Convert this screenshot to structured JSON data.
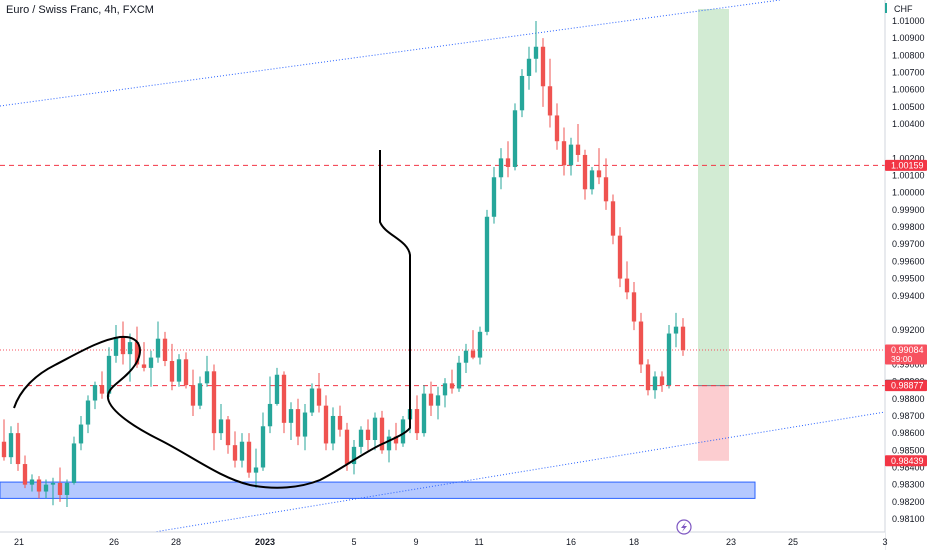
{
  "chart_data": {
    "type": "candlestick",
    "title": "Euro / Swiss Franc, 4h, FXCM",
    "currency": "CHF",
    "y_ticks": [
      "1.01000",
      "1.00900",
      "1.00800",
      "1.00700",
      "1.00600",
      "1.00500",
      "1.00400",
      "1.00200",
      "1.00100",
      "1.00000",
      "0.99900",
      "0.99800",
      "0.99700",
      "0.99600",
      "0.99500",
      "0.99400",
      "0.99200",
      "0.99000",
      "0.98900",
      "0.98800",
      "0.98700",
      "0.98600",
      "0.98500",
      "0.98400",
      "0.98300",
      "0.98200",
      "0.98100"
    ],
    "x_ticks": [
      "21",
      "26",
      "28",
      "2023",
      "5",
      "9",
      "11",
      "16",
      "18",
      "23",
      "25",
      "3"
    ],
    "x_tick_dates": [
      "2022-12-21",
      "2022-12-26",
      "2022-12-28",
      "2023-01-01",
      "2023-01-05",
      "2023-01-09",
      "2023-01-11",
      "2023-01-16",
      "2023-01-18",
      "2023-01-23",
      "2023-01-25",
      "2023-02-03"
    ],
    "ylim": [
      0.9805,
      1.0123
    ],
    "colors": {
      "up": "#26a69a",
      "down": "#ef5350",
      "channel": "#2962ff",
      "level": "#f23645"
    },
    "price_labels": [
      {
        "text": "1.00159",
        "value": 1.00159,
        "bg": "#f23645",
        "color": "#ffffff"
      },
      {
        "text": "0.99084",
        "sub": "39:00",
        "value": 0.99084,
        "bg": "#f7525f",
        "color": "#ffffff"
      },
      {
        "text": "0.98879",
        "value": 0.98879,
        "bg": "#363a45",
        "color": "#ffffff"
      },
      {
        "text": "0.98877",
        "value": 0.98877,
        "bg": "#f23645",
        "color": "#ffffff"
      },
      {
        "text": "0.98439",
        "value": 0.98439,
        "bg": "#f23645",
        "color": "#ffffff"
      }
    ],
    "levels": [
      {
        "value": 1.00159,
        "style": "dashed",
        "color": "#f23645"
      },
      {
        "value": 0.99084,
        "style": "dotted",
        "color": "#f7525f"
      },
      {
        "value": 0.98877,
        "style": "dashed",
        "color": "#f23645"
      }
    ],
    "support_zone": {
      "from": 0.9822,
      "to": 0.98315,
      "color": "#2962ff"
    },
    "position": {
      "entry": 0.98877,
      "target": 1.0107,
      "stop": 0.98439
    },
    "candles": [
      [
        0.9855,
        0.9868,
        0.9844,
        0.9846
      ],
      [
        0.9846,
        0.9864,
        0.9842,
        0.986
      ],
      [
        0.986,
        0.9866,
        0.9838,
        0.9842
      ],
      [
        0.9842,
        0.9847,
        0.9828,
        0.983
      ],
      [
        0.983,
        0.9836,
        0.9826,
        0.9833
      ],
      [
        0.9833,
        0.9835,
        0.9822,
        0.9826
      ],
      [
        0.9826,
        0.9833,
        0.9822,
        0.983
      ],
      [
        0.983,
        0.9834,
        0.9818,
        0.9831
      ],
      [
        0.9831,
        0.984,
        0.982,
        0.9824
      ],
      [
        0.9824,
        0.9833,
        0.9817,
        0.9831
      ],
      [
        0.9831,
        0.9858,
        0.983,
        0.9854
      ],
      [
        0.9854,
        0.987,
        0.985,
        0.9865
      ],
      [
        0.9865,
        0.9882,
        0.986,
        0.9879
      ],
      [
        0.9879,
        0.989,
        0.9874,
        0.9888
      ],
      [
        0.9888,
        0.9896,
        0.988,
        0.9883
      ],
      [
        0.9883,
        0.991,
        0.9881,
        0.9905
      ],
      [
        0.9905,
        0.9923,
        0.9901,
        0.9916
      ],
      [
        0.9916,
        0.9925,
        0.99,
        0.9906
      ],
      [
        0.9906,
        0.9918,
        0.989,
        0.9913
      ],
      [
        0.9913,
        0.9922,
        0.9898,
        0.99
      ],
      [
        0.99,
        0.9913,
        0.9896,
        0.9898
      ],
      [
        0.9898,
        0.9908,
        0.9887,
        0.9904
      ],
      [
        0.9904,
        0.9925,
        0.9901,
        0.9915
      ],
      [
        0.9915,
        0.9919,
        0.9899,
        0.9902
      ],
      [
        0.9902,
        0.9912,
        0.9885,
        0.989
      ],
      [
        0.989,
        0.9906,
        0.9887,
        0.9903
      ],
      [
        0.9903,
        0.9907,
        0.9886,
        0.9888
      ],
      [
        0.9888,
        0.9897,
        0.987,
        0.9876
      ],
      [
        0.9876,
        0.9893,
        0.9874,
        0.9889
      ],
      [
        0.9889,
        0.9905,
        0.9887,
        0.9896
      ],
      [
        0.9896,
        0.99,
        0.985,
        0.986
      ],
      [
        0.986,
        0.9877,
        0.9856,
        0.9868
      ],
      [
        0.9868,
        0.987,
        0.9848,
        0.9853
      ],
      [
        0.9853,
        0.9861,
        0.984,
        0.9844
      ],
      [
        0.9844,
        0.986,
        0.984,
        0.9855
      ],
      [
        0.9855,
        0.986,
        0.9834,
        0.9837
      ],
      [
        0.9837,
        0.9851,
        0.9828,
        0.984
      ],
      [
        0.984,
        0.9872,
        0.9838,
        0.9864
      ],
      [
        0.9864,
        0.9893,
        0.986,
        0.9877
      ],
      [
        0.9877,
        0.9898,
        0.9876,
        0.9894
      ],
      [
        0.9894,
        0.9896,
        0.986,
        0.9866
      ],
      [
        0.9866,
        0.9878,
        0.9856,
        0.9874
      ],
      [
        0.9874,
        0.988,
        0.9853,
        0.9858
      ],
      [
        0.9858,
        0.9877,
        0.985,
        0.9872
      ],
      [
        0.9872,
        0.9889,
        0.987,
        0.9886
      ],
      [
        0.9886,
        0.9895,
        0.9872,
        0.9876
      ],
      [
        0.9876,
        0.9882,
        0.985,
        0.9854
      ],
      [
        0.9854,
        0.9875,
        0.985,
        0.987
      ],
      [
        0.987,
        0.9876,
        0.9858,
        0.9862
      ],
      [
        0.9862,
        0.9866,
        0.9838,
        0.9842
      ],
      [
        0.9842,
        0.9856,
        0.9836,
        0.9852
      ],
      [
        0.9852,
        0.9864,
        0.9848,
        0.9862
      ],
      [
        0.9862,
        0.9868,
        0.985,
        0.9856
      ],
      [
        0.9856,
        0.9872,
        0.985,
        0.9869
      ],
      [
        0.9869,
        0.9873,
        0.9848,
        0.985
      ],
      [
        0.985,
        0.9862,
        0.9843,
        0.9858
      ],
      [
        0.9858,
        0.9866,
        0.985,
        0.9854
      ],
      [
        0.9854,
        0.987,
        0.9852,
        0.9868
      ],
      [
        0.9868,
        0.9878,
        0.986,
        0.9874
      ],
      [
        0.9874,
        0.9882,
        0.9856,
        0.986
      ],
      [
        0.986,
        0.9888,
        0.9858,
        0.9883
      ],
      [
        0.9883,
        0.989,
        0.987,
        0.9876
      ],
      [
        0.9876,
        0.9887,
        0.9868,
        0.9882
      ],
      [
        0.9882,
        0.9892,
        0.9875,
        0.9889
      ],
      [
        0.9889,
        0.9897,
        0.9883,
        0.9886
      ],
      [
        0.9886,
        0.9905,
        0.9884,
        0.9901
      ],
      [
        0.9901,
        0.9912,
        0.9895,
        0.9908
      ],
      [
        0.9908,
        0.992,
        0.9903,
        0.9904
      ],
      [
        0.9904,
        0.9922,
        0.99,
        0.9919
      ],
      [
        0.9919,
        0.999,
        0.9917,
        0.9986
      ],
      [
        0.9986,
        1.0015,
        0.9982,
        1.0009
      ],
      [
        1.0009,
        1.0026,
        1.0002,
        1.002
      ],
      [
        1.002,
        1.003,
        1.0009,
        1.0015
      ],
      [
        1.0015,
        1.0052,
        1.0013,
        1.0048
      ],
      [
        1.0048,
        1.0072,
        1.0044,
        1.0068
      ],
      [
        1.0068,
        1.0085,
        1.006,
        1.0078
      ],
      [
        1.0078,
        1.01,
        1.007,
        1.0085
      ],
      [
        1.0085,
        1.009,
        1.005,
        1.0062
      ],
      [
        1.0062,
        1.0078,
        1.0038,
        1.0045
      ],
      [
        1.0045,
        1.0052,
        1.0025,
        1.003
      ],
      [
        1.003,
        1.0038,
        1.001,
        1.0016
      ],
      [
        1.0016,
        1.0032,
        1.001,
        1.0028
      ],
      [
        1.0028,
        1.004,
        1.0018,
        1.0022
      ],
      [
        1.0022,
        1.0025,
        0.9996,
        1.0002
      ],
      [
        1.0002,
        1.0015,
        0.9999,
        1.0013
      ],
      [
        1.0013,
        1.0026,
        1.0005,
        1.0009
      ],
      [
        1.0009,
        1.002,
        0.999,
        0.9995
      ],
      [
        0.9995,
        0.9999,
        0.997,
        0.9975
      ],
      [
        0.9975,
        0.998,
        0.9945,
        0.995
      ],
      [
        0.995,
        0.996,
        0.9938,
        0.9942
      ],
      [
        0.9942,
        0.9948,
        0.992,
        0.9925
      ],
      [
        0.9925,
        0.993,
        0.9895,
        0.99
      ],
      [
        0.99,
        0.9903,
        0.9882,
        0.9885
      ],
      [
        0.9885,
        0.9896,
        0.988,
        0.9893
      ],
      [
        0.9893,
        0.9896,
        0.9884,
        0.9888
      ],
      [
        0.9888,
        0.9923,
        0.9886,
        0.9918
      ],
      [
        0.9918,
        0.993,
        0.991,
        0.9922
      ],
      [
        0.9922,
        0.9927,
        0.9905,
        0.99084
      ]
    ]
  }
}
